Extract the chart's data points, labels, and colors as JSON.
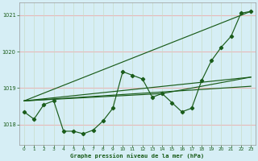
{
  "title": "Graphe pression niveau de la mer (hPa)",
  "bg_color": "#d6eef5",
  "grid_color_h": "#e8b8b8",
  "grid_color_v": "#c8ddc8",
  "line_color": "#1a5c1a",
  "xlim": [
    -0.5,
    23.5
  ],
  "ylim": [
    1017.45,
    1021.35
  ],
  "yticks": [
    1018,
    1019,
    1020,
    1021
  ],
  "xticks": [
    0,
    1,
    2,
    3,
    4,
    5,
    6,
    7,
    8,
    9,
    10,
    11,
    12,
    13,
    14,
    15,
    16,
    17,
    18,
    19,
    20,
    21,
    22,
    23
  ],
  "main_line": {
    "x": [
      0,
      1,
      2,
      3,
      4,
      5,
      6,
      7,
      8,
      9,
      10,
      11,
      12,
      13,
      14,
      15,
      16,
      17,
      18,
      19,
      20,
      21,
      22,
      23
    ],
    "y": [
      1018.35,
      1018.15,
      1018.55,
      1018.65,
      1017.82,
      1017.82,
      1017.75,
      1017.85,
      1018.1,
      1018.45,
      1019.45,
      1019.35,
      1019.25,
      1018.75,
      1018.85,
      1018.6,
      1018.35,
      1018.45,
      1019.2,
      1019.75,
      1020.12,
      1020.42,
      1021.05,
      1021.1
    ]
  },
  "line_upper": {
    "x": [
      0,
      23
    ],
    "y": [
      1018.65,
      1021.1
    ]
  },
  "line_lower1": {
    "x": [
      0,
      23
    ],
    "y": [
      1018.65,
      1019.3
    ]
  },
  "line_lower2": {
    "x": [
      0,
      14,
      23
    ],
    "y": [
      1018.65,
      1018.85,
      1019.3
    ]
  },
  "line_lower3": {
    "x": [
      0,
      23
    ],
    "y": [
      1018.65,
      1019.05
    ]
  }
}
